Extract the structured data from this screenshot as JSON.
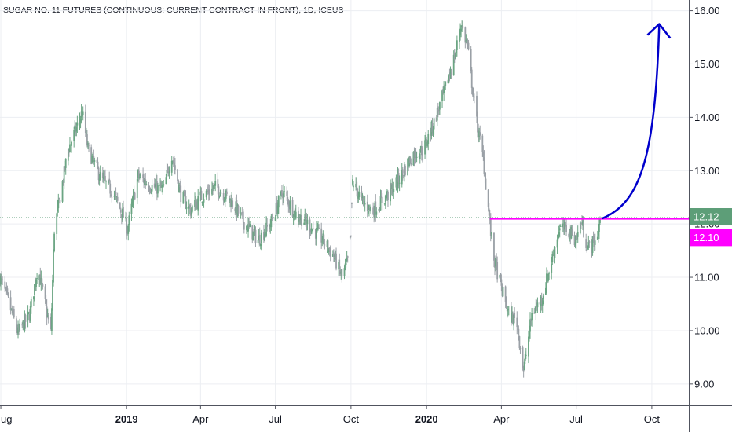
{
  "header": {
    "title": "SUGAR NO. 11 FUTURES (CONTINUOUS: CURRENT CONTRACT IN FRONT), 1D, ICEUS"
  },
  "colors": {
    "up_candle": "#6ba583",
    "down_candle": "#9aa0a6",
    "grid": "#eceef2",
    "axis_text": "#131722",
    "current_price_badge": "#5d9e78",
    "drawing_line": "#ff00ff",
    "projection_arrow": "#0000cc",
    "price_line_dotted": "#5d9e78"
  },
  "chart_data": {
    "type": "line",
    "subtype": "candlestick",
    "price_axis": {
      "position": "right",
      "ticks": [
        "9.00",
        "10.00",
        "11.00",
        "12.00",
        "13.00",
        "14.00",
        "15.00",
        "16.00"
      ],
      "range": [
        8.6,
        16.2
      ]
    },
    "time_axis": {
      "ticks": [
        {
          "label": "ug",
          "date": "2018-08-01",
          "bold": false
        },
        {
          "label": "2019",
          "date": "2019-01-01",
          "bold": true
        },
        {
          "label": "Apr",
          "date": "2019-04-01",
          "bold": false
        },
        {
          "label": "Jul",
          "date": "2019-07-01",
          "bold": false
        },
        {
          "label": "Oct",
          "date": "2019-10-01",
          "bold": false
        },
        {
          "label": "2020",
          "date": "2020-01-01",
          "bold": true
        },
        {
          "label": "Apr",
          "date": "2020-04-01",
          "bold": false
        },
        {
          "label": "Jul",
          "date": "2020-07-01",
          "bold": false
        },
        {
          "label": "Oct",
          "date": "2020-10-01",
          "bold": false
        }
      ],
      "range": [
        "2018-07-31",
        "2020-11-15"
      ]
    },
    "series": [
      {
        "close_path": [
          [
            "2018-07-31",
            11.0
          ],
          [
            "2018-08-10",
            10.55
          ],
          [
            "2018-08-22",
            9.95
          ],
          [
            "2018-09-05",
            10.3
          ],
          [
            "2018-09-15",
            11.2
          ],
          [
            "2018-09-25",
            10.4
          ],
          [
            "2018-10-01",
            9.95
          ],
          [
            "2018-10-05",
            11.9
          ],
          [
            "2018-10-12",
            12.5
          ],
          [
            "2018-10-22",
            13.4
          ],
          [
            "2018-11-01",
            13.8
          ],
          [
            "2018-11-08",
            14.1
          ],
          [
            "2018-11-15",
            13.4
          ],
          [
            "2018-12-01",
            12.85
          ],
          [
            "2018-12-15",
            12.6
          ],
          [
            "2018-12-28",
            12.15
          ],
          [
            "2019-01-02",
            11.9
          ],
          [
            "2019-01-15",
            12.9
          ],
          [
            "2019-02-01",
            12.7
          ],
          [
            "2019-02-15",
            12.65
          ],
          [
            "2019-02-25",
            13.3
          ],
          [
            "2019-03-08",
            12.55
          ],
          [
            "2019-03-20",
            12.25
          ],
          [
            "2019-04-01",
            12.5
          ],
          [
            "2019-04-20",
            12.7
          ],
          [
            "2019-05-10",
            12.4
          ],
          [
            "2019-05-25",
            12.0
          ],
          [
            "2019-06-10",
            11.7
          ],
          [
            "2019-06-25",
            12.0
          ],
          [
            "2019-07-10",
            12.6
          ],
          [
            "2019-07-25",
            12.2
          ],
          [
            "2019-08-10",
            12.0
          ],
          [
            "2019-08-25",
            11.75
          ],
          [
            "2019-09-10",
            11.4
          ],
          [
            "2019-09-20",
            11.0
          ],
          [
            "2019-09-27",
            11.3
          ],
          [
            "2019-10-01",
            11.75
          ],
          [
            "2019-10-03",
            12.8
          ],
          [
            "2019-10-15",
            12.4
          ],
          [
            "2019-10-28",
            12.25
          ],
          [
            "2019-11-15",
            12.55
          ],
          [
            "2019-12-01",
            12.9
          ],
          [
            "2019-12-15",
            13.3
          ],
          [
            "2019-12-28",
            13.4
          ],
          [
            "2020-01-10",
            13.9
          ],
          [
            "2020-01-25",
            14.6
          ],
          [
            "2020-02-05",
            15.2
          ],
          [
            "2020-02-12",
            15.75
          ],
          [
            "2020-02-20",
            15.3
          ],
          [
            "2020-03-01",
            14.0
          ],
          [
            "2020-03-10",
            13.2
          ],
          [
            "2020-03-16",
            12.3
          ],
          [
            "2020-03-22",
            11.4
          ],
          [
            "2020-04-01",
            10.8
          ],
          [
            "2020-04-10",
            10.3
          ],
          [
            "2020-04-20",
            10.15
          ],
          [
            "2020-04-28",
            9.25
          ],
          [
            "2020-05-08",
            10.3
          ],
          [
            "2020-05-20",
            10.6
          ],
          [
            "2020-06-01",
            11.3
          ],
          [
            "2020-06-10",
            11.9
          ],
          [
            "2020-06-20",
            11.9
          ],
          [
            "2020-07-01",
            11.7
          ],
          [
            "2020-07-07",
            12.05
          ],
          [
            "2020-07-15",
            11.55
          ],
          [
            "2020-07-25",
            11.7
          ],
          [
            "2020-07-31",
            12.12
          ]
        ]
      }
    ],
    "last_price": "12.12",
    "annotations": [
      {
        "type": "horizontal_ray",
        "price": 12.1,
        "start_date": "2020-03-18",
        "label": "12.10"
      },
      {
        "type": "curved_arrow",
        "from": [
          "2020-08-01",
          12.1
        ],
        "to": [
          "2020-10-10",
          15.75
        ]
      }
    ],
    "grid": true
  }
}
